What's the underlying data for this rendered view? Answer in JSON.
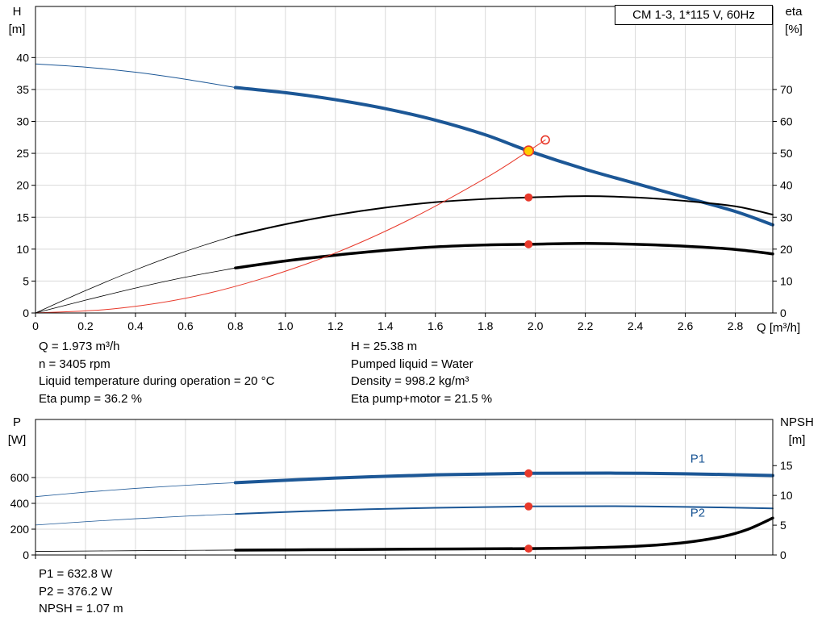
{
  "colors": {
    "blue": "#1c5796",
    "black": "#000000",
    "red": "#e8392b",
    "yellow": "#ffcc00",
    "grid": "#d9d9d9"
  },
  "chart_data": [
    {
      "id": "qh-eta-chart",
      "type": "line",
      "title": "CM 1-3, 1*115 V, 60Hz",
      "x": {
        "label": "Q [m³/h]",
        "max": 2.95,
        "show_labels": true,
        "ticks": [
          0,
          0.2,
          0.4,
          0.6,
          0.8,
          1,
          1.2,
          1.4,
          1.6,
          1.8,
          2,
          2.2,
          2.4,
          2.6,
          2.8
        ]
      },
      "y_left": {
        "name": "H",
        "unit": "[m]",
        "max": 48,
        "ticks": [
          0,
          5,
          10,
          15,
          20,
          25,
          30,
          35,
          40
        ]
      },
      "y_right": {
        "name": "eta",
        "unit": "[%]",
        "max": 96,
        "ticks": [
          0,
          10,
          20,
          30,
          40,
          50,
          60,
          70
        ]
      },
      "curves": [
        {
          "name": "qh-curve-extension",
          "axis": "left",
          "color": "blue",
          "width": 1,
          "points": [
            [
              0,
              39
            ],
            [
              0.2,
              38.5
            ],
            [
              0.4,
              37.7
            ],
            [
              0.6,
              36.6
            ],
            [
              0.8,
              35.3
            ]
          ]
        },
        {
          "name": "qh-curve",
          "axis": "left",
          "color": "blue",
          "width": 4,
          "points": [
            [
              0.8,
              35.3
            ],
            [
              1,
              34.5
            ],
            [
              1.2,
              33.4
            ],
            [
              1.4,
              32
            ],
            [
              1.6,
              30.2
            ],
            [
              1.8,
              27.9
            ],
            [
              1.973,
              25.38
            ],
            [
              2.2,
              22.5
            ],
            [
              2.4,
              20.3
            ],
            [
              2.6,
              18.1
            ],
            [
              2.8,
              15.9
            ],
            [
              2.95,
              13.8
            ]
          ]
        },
        {
          "name": "eta-pump-curve-extension",
          "axis": "right",
          "color": "black",
          "width": 0.8,
          "points": [
            [
              0,
              0
            ],
            [
              0.2,
              7
            ],
            [
              0.4,
              13.5
            ],
            [
              0.6,
              19.3
            ],
            [
              0.8,
              24.3
            ]
          ]
        },
        {
          "name": "eta-pump-curve",
          "axis": "right",
          "color": "black",
          "width": 2,
          "points": [
            [
              0.8,
              24.3
            ],
            [
              1,
              27.8
            ],
            [
              1.2,
              30.7
            ],
            [
              1.4,
              33
            ],
            [
              1.6,
              34.7
            ],
            [
              1.8,
              35.7
            ],
            [
              1.973,
              36.2
            ],
            [
              2.2,
              36.6
            ],
            [
              2.4,
              36.2
            ],
            [
              2.6,
              35.1
            ],
            [
              2.8,
              33.4
            ],
            [
              2.95,
              30.8
            ]
          ]
        },
        {
          "name": "eta-pump-motor-curve-extension",
          "axis": "right",
          "color": "black",
          "width": 0.8,
          "points": [
            [
              0,
              0
            ],
            [
              0.2,
              4
            ],
            [
              0.4,
              7.8
            ],
            [
              0.6,
              11.2
            ],
            [
              0.8,
              14.1
            ]
          ]
        },
        {
          "name": "eta-pump-motor-curve",
          "axis": "right",
          "color": "black",
          "width": 3.5,
          "points": [
            [
              0.8,
              14.1
            ],
            [
              1,
              16.3
            ],
            [
              1.2,
              18.1
            ],
            [
              1.4,
              19.6
            ],
            [
              1.6,
              20.7
            ],
            [
              1.8,
              21.3
            ],
            [
              1.973,
              21.5
            ],
            [
              2.2,
              21.8
            ],
            [
              2.4,
              21.5
            ],
            [
              2.6,
              20.9
            ],
            [
              2.8,
              19.9
            ],
            [
              2.95,
              18.5
            ]
          ]
        },
        {
          "name": "system-curve",
          "axis": "left",
          "color": "red",
          "width": 1,
          "points": [
            [
              0,
              0
            ],
            [
              0.3,
              0.6
            ],
            [
              0.6,
              2.3
            ],
            [
              0.9,
              5.3
            ],
            [
              1.2,
              9.4
            ],
            [
              1.5,
              14.7
            ],
            [
              1.8,
              21.1
            ],
            [
              1.973,
              25.38
            ],
            [
              2.04,
              27.1
            ]
          ]
        }
      ],
      "curve_labels": [],
      "markers": [
        {
          "name": "duty-point-eta-pump-dot",
          "axis": "right",
          "q": 1.973,
          "v": 36.2,
          "r": 5,
          "fill": "red"
        },
        {
          "name": "duty-point-eta-motor-dot",
          "axis": "right",
          "q": 1.973,
          "v": 21.5,
          "r": 5,
          "fill": "red"
        },
        {
          "name": "projected-duty-circle",
          "axis": "left",
          "q": 2.04,
          "v": 27.1,
          "r": 5,
          "fill": "none",
          "stroke": "red"
        },
        {
          "name": "duty-point",
          "axis": "left",
          "q": 1.973,
          "v": 25.38,
          "r": 6,
          "fill": "yellow",
          "stroke": "red"
        }
      ]
    },
    {
      "id": "power-npsh-chart",
      "type": "line",
      "title": "",
      "x": {
        "label": "",
        "max": 2.95,
        "show_labels": false,
        "ticks": [
          0,
          0.2,
          0.4,
          0.6,
          0.8,
          1,
          1.2,
          1.4,
          1.6,
          1.8,
          2,
          2.2,
          2.4,
          2.6,
          2.8
        ]
      },
      "y_left": {
        "name": "P",
        "unit": "[W]",
        "max": 1050,
        "ticks": [
          0,
          200,
          400,
          600
        ]
      },
      "y_right": {
        "name": "NPSH",
        "unit": "[m]",
        "max": 22.75,
        "ticks": [
          0,
          5,
          10,
          15
        ]
      },
      "curves": [
        {
          "name": "p1-curve-extension",
          "axis": "left",
          "color": "blue",
          "width": 0.8,
          "points": [
            [
              0,
              452
            ],
            [
              0.2,
              487
            ],
            [
              0.4,
              516
            ],
            [
              0.6,
              540
            ],
            [
              0.8,
              560
            ]
          ]
        },
        {
          "name": "p1-curve",
          "axis": "left",
          "color": "blue",
          "width": 4,
          "points": [
            [
              0.8,
              560
            ],
            [
              1.2,
              596
            ],
            [
              1.6,
              621
            ],
            [
              1.973,
              632.8
            ],
            [
              2.3,
              634
            ],
            [
              2.6,
              629
            ],
            [
              2.95,
              616
            ]
          ]
        },
        {
          "name": "p2-curve-extension",
          "axis": "left",
          "color": "blue",
          "width": 0.8,
          "points": [
            [
              0,
              232
            ],
            [
              0.2,
              258
            ],
            [
              0.4,
              281
            ],
            [
              0.6,
              301
            ],
            [
              0.8,
              318
            ]
          ]
        },
        {
          "name": "p2-curve",
          "axis": "left",
          "color": "blue",
          "width": 2,
          "points": [
            [
              0.8,
              318
            ],
            [
              1.2,
              347
            ],
            [
              1.6,
              366
            ],
            [
              1.973,
              376.2
            ],
            [
              2.3,
              378
            ],
            [
              2.6,
              373
            ],
            [
              2.95,
              361
            ]
          ]
        },
        {
          "name": "npsh-curve-extension",
          "axis": "right",
          "color": "black",
          "width": 0.8,
          "points": [
            [
              0,
              0.6
            ],
            [
              0.4,
              0.72
            ],
            [
              0.8,
              0.82
            ]
          ]
        },
        {
          "name": "npsh-curve",
          "axis": "right",
          "color": "black",
          "width": 3.5,
          "points": [
            [
              0.8,
              0.82
            ],
            [
              1.2,
              0.9
            ],
            [
              1.6,
              1
            ],
            [
              1.973,
              1.07
            ],
            [
              2.2,
              1.2
            ],
            [
              2.4,
              1.45
            ],
            [
              2.6,
              2.1
            ],
            [
              2.75,
              3.1
            ],
            [
              2.85,
              4.3
            ],
            [
              2.95,
              6.2
            ]
          ]
        }
      ],
      "curve_labels": [
        {
          "text": "P1",
          "axis": "left",
          "q": 2.62,
          "v": 715,
          "color": "blue"
        },
        {
          "text": "P2",
          "axis": "left",
          "q": 2.62,
          "v": 298,
          "color": "blue"
        }
      ],
      "markers": [
        {
          "name": "duty-point-p1-dot",
          "axis": "left",
          "q": 1.973,
          "v": 632.8,
          "r": 5,
          "fill": "red"
        },
        {
          "name": "duty-point-p2-dot",
          "axis": "left",
          "q": 1.973,
          "v": 376.2,
          "r": 5,
          "fill": "red"
        },
        {
          "name": "duty-point-npsh-dot",
          "axis": "right",
          "q": 1.973,
          "v": 1.07,
          "r": 5,
          "fill": "red"
        }
      ]
    }
  ],
  "annotations": {
    "duty_left": [
      "Q = 1.973 m³/h",
      "n = 3405 rpm",
      "Liquid temperature during operation = 20 °C",
      "Eta pump = 36.2 %"
    ],
    "duty_right": [
      "H = 25.38 m",
      "Pumped liquid = Water",
      "Density = 998.2 kg/m³",
      "Eta pump+motor = 21.5 %"
    ],
    "power": [
      "P1 = 632.8 W",
      "P2 = 376.2 W",
      "NPSH = 1.07 m"
    ]
  }
}
